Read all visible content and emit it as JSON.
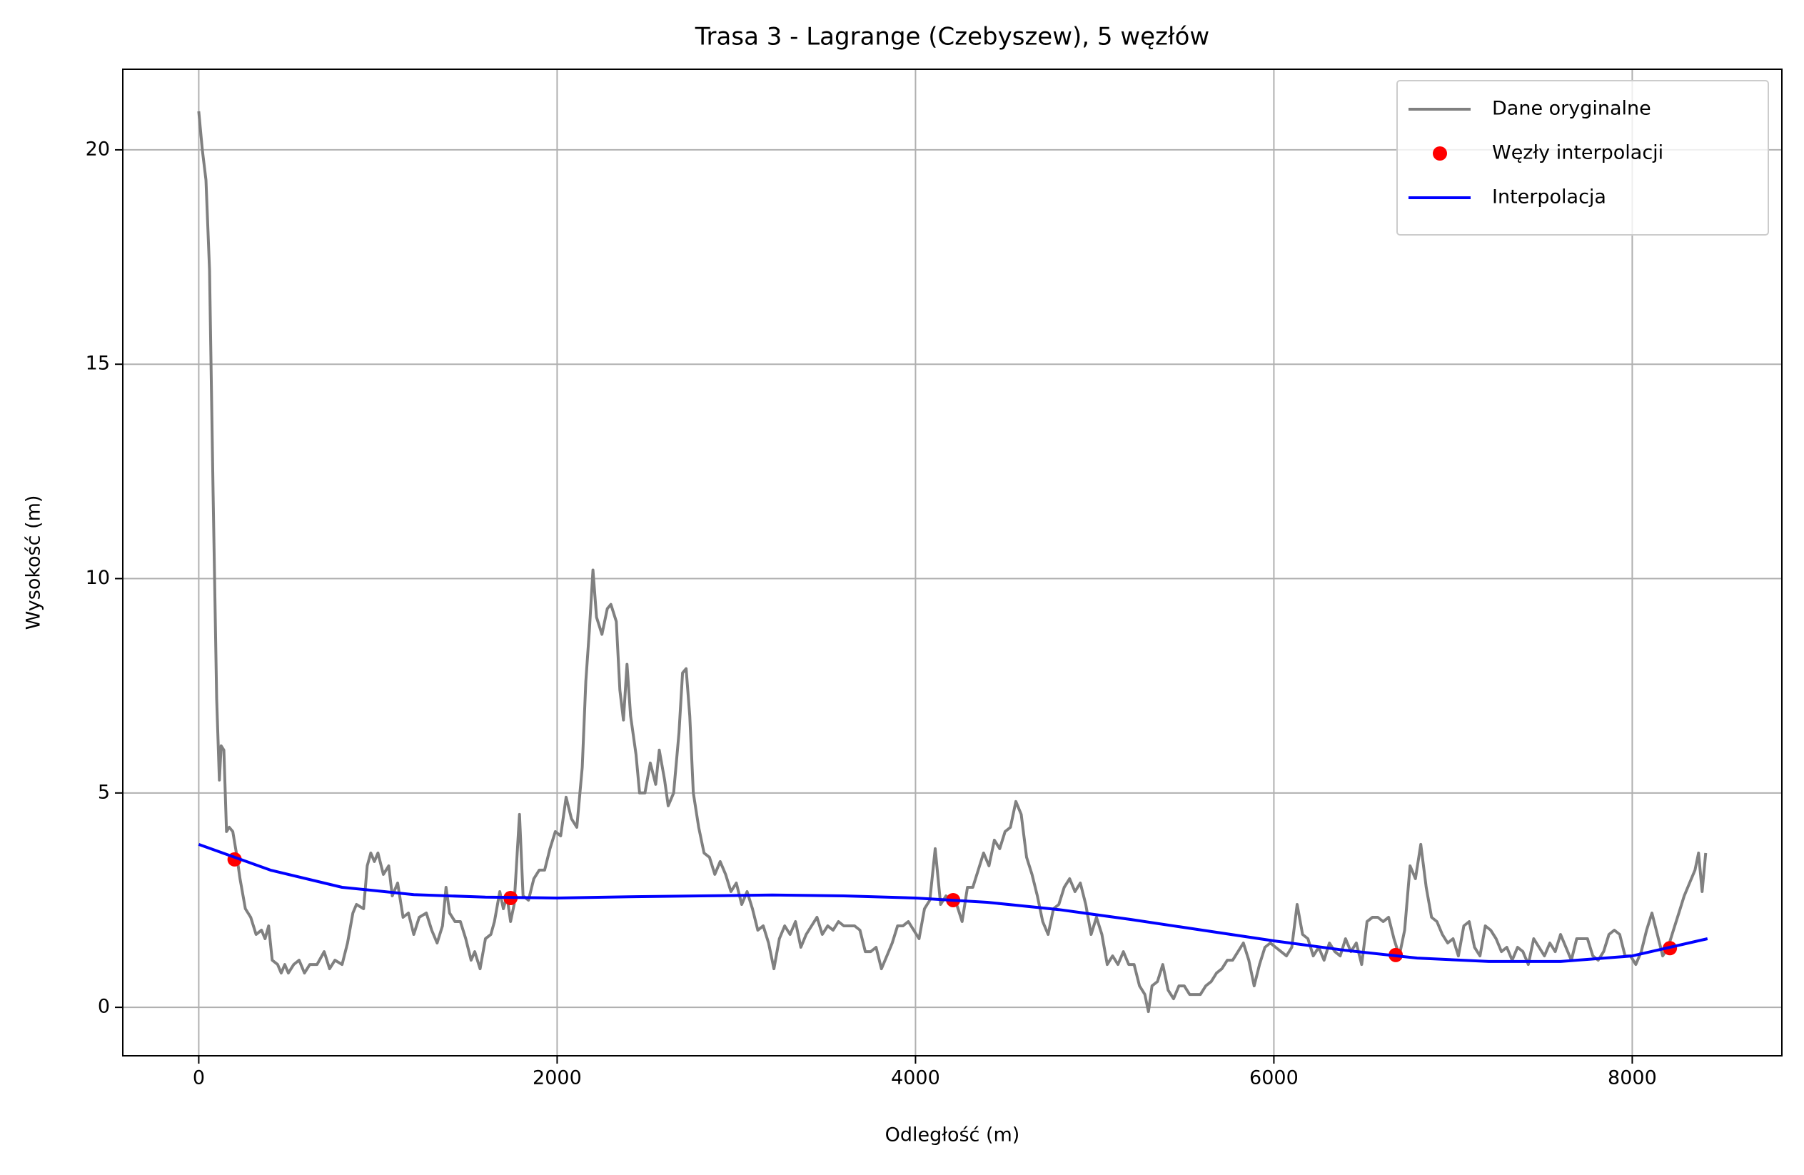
{
  "chart_data": {
    "type": "line",
    "title": "Trasa 3 - Lagrange (Czebyszew), 5 węzłów",
    "x_label": "Odległość (m)",
    "y_label": "Wysokość (m)",
    "xlim": [
      -424,
      8835
    ],
    "ylim": [
      -1.13,
      21.88
    ],
    "xticks": [
      0,
      2000,
      4000,
      6000,
      8000
    ],
    "yticks": [
      0,
      5,
      10,
      15,
      20
    ],
    "grid": true,
    "legend": "upper right",
    "series": [
      {
        "name": "Dane oryginalne",
        "color": "#808080",
        "style": "line",
        "x": [
          0,
          20,
          40,
          60,
          80,
          100,
          115,
          125,
          140,
          155,
          170,
          190,
          210,
          230,
          260,
          290,
          320,
          350,
          370,
          390,
          410,
          440,
          460,
          480,
          500,
          530,
          560,
          590,
          620,
          660,
          700,
          730,
          760,
          800,
          830,
          860,
          880,
          920,
          940,
          960,
          980,
          1000,
          1030,
          1060,
          1080,
          1110,
          1140,
          1170,
          1200,
          1230,
          1270,
          1300,
          1330,
          1360,
          1380,
          1400,
          1430,
          1460,
          1490,
          1520,
          1540,
          1570,
          1600,
          1630,
          1650,
          1680,
          1700,
          1720,
          1740,
          1760,
          1790,
          1810,
          1840,
          1870,
          1900,
          1930,
          1960,
          1990,
          2020,
          2050,
          2080,
          2110,
          2140,
          2160,
          2180,
          2200,
          2220,
          2250,
          2280,
          2300,
          2330,
          2350,
          2370,
          2390,
          2410,
          2440,
          2460,
          2490,
          2520,
          2550,
          2570,
          2600,
          2620,
          2650,
          2680,
          2700,
          2720,
          2740,
          2760,
          2790,
          2820,
          2850,
          2880,
          2910,
          2940,
          2970,
          3000,
          3030,
          3060,
          3090,
          3120,
          3150,
          3180,
          3210,
          3240,
          3270,
          3300,
          3330,
          3360,
          3390,
          3420,
          3450,
          3480,
          3510,
          3540,
          3570,
          3600,
          3630,
          3660,
          3690,
          3720,
          3750,
          3780,
          3810,
          3840,
          3870,
          3900,
          3930,
          3960,
          3990,
          4020,
          4050,
          4080,
          4110,
          4140,
          4170,
          4200,
          4230,
          4260,
          4290,
          4320,
          4350,
          4380,
          4410,
          4440,
          4470,
          4500,
          4530,
          4560,
          4590,
          4620,
          4650,
          4680,
          4710,
          4740,
          4770,
          4800,
          4830,
          4860,
          4890,
          4920,
          4950,
          4980,
          5010,
          5040,
          5070,
          5100,
          5130,
          5160,
          5190,
          5220,
          5250,
          5280,
          5300,
          5320,
          5350,
          5380,
          5410,
          5440,
          5470,
          5500,
          5530,
          5560,
          5590,
          5620,
          5650,
          5680,
          5710,
          5740,
          5770,
          5800,
          5830,
          5860,
          5890,
          5920,
          5950,
          5980,
          6010,
          6040,
          6070,
          6100,
          6130,
          6160,
          6190,
          6220,
          6250,
          6280,
          6310,
          6340,
          6370,
          6400,
          6430,
          6460,
          6490,
          6520,
          6550,
          6580,
          6610,
          6640,
          6670,
          6700,
          6730,
          6760,
          6790,
          6820,
          6850,
          6880,
          6910,
          6940,
          6970,
          7000,
          7030,
          7060,
          7090,
          7120,
          7150,
          7180,
          7210,
          7240,
          7270,
          7300,
          7330,
          7360,
          7390,
          7420,
          7450,
          7480,
          7510,
          7540,
          7570,
          7600,
          7630,
          7660,
          7690,
          7720,
          7750,
          7780,
          7810,
          7840,
          7870,
          7900,
          7930,
          7960,
          7990,
          8020,
          8050,
          8080,
          8110,
          8140,
          8170,
          8200,
          8230,
          8260,
          8290,
          8320,
          8350,
          8370,
          8390,
          8410
        ],
        "values": [
          20.9,
          20,
          19.3,
          17.2,
          12,
          7.2,
          5.3,
          6.1,
          6.0,
          4.1,
          4.2,
          4.1,
          3.6,
          3.0,
          2.3,
          2.1,
          1.7,
          1.8,
          1.6,
          1.9,
          1.1,
          1.0,
          0.8,
          1.0,
          0.8,
          1.0,
          1.1,
          0.8,
          1.0,
          1.0,
          1.3,
          0.9,
          1.1,
          1.0,
          1.5,
          2.2,
          2.4,
          2.3,
          3.3,
          3.6,
          3.4,
          3.6,
          3.1,
          3.3,
          2.6,
          2.9,
          2.1,
          2.2,
          1.7,
          2.1,
          2.2,
          1.8,
          1.5,
          1.9,
          2.8,
          2.2,
          2.0,
          2.0,
          1.6,
          1.1,
          1.3,
          0.9,
          1.6,
          1.7,
          2.0,
          2.7,
          2.3,
          2.6,
          2.0,
          2.4,
          4.5,
          2.6,
          2.5,
          3.0,
          3.2,
          3.2,
          3.7,
          4.1,
          4.0,
          4.9,
          4.4,
          4.2,
          5.6,
          7.6,
          8.8,
          10.2,
          9.1,
          8.7,
          9.3,
          9.4,
          9.0,
          7.4,
          6.7,
          8.0,
          6.8,
          5.9,
          5.0,
          5.0,
          5.7,
          5.2,
          6.0,
          5.3,
          4.7,
          5.0,
          6.4,
          7.8,
          7.9,
          6.8,
          5.0,
          4.2,
          3.6,
          3.5,
          3.1,
          3.4,
          3.1,
          2.7,
          2.9,
          2.4,
          2.7,
          2.3,
          1.8,
          1.9,
          1.5,
          0.9,
          1.6,
          1.9,
          1.7,
          2.0,
          1.4,
          1.7,
          1.9,
          2.1,
          1.7,
          1.9,
          1.8,
          2.0,
          1.9,
          1.9,
          1.9,
          1.8,
          1.3,
          1.3,
          1.4,
          0.9,
          1.2,
          1.5,
          1.9,
          1.9,
          2.0,
          1.8,
          1.6,
          2.3,
          2.5,
          3.7,
          2.4,
          2.6,
          2.5,
          2.4,
          2.0,
          2.8,
          2.8,
          3.2,
          3.6,
          3.3,
          3.9,
          3.7,
          4.1,
          4.2,
          4.8,
          4.5,
          3.5,
          3.1,
          2.6,
          2.0,
          1.7,
          2.3,
          2.4,
          2.8,
          3.0,
          2.7,
          2.9,
          2.4,
          1.7,
          2.1,
          1.7,
          1.0,
          1.2,
          1.0,
          1.3,
          1.0,
          1.0,
          0.5,
          0.3,
          -0.1,
          0.5,
          0.6,
          1.0,
          0.4,
          0.2,
          0.5,
          0.5,
          0.3,
          0.3,
          0.3,
          0.5,
          0.6,
          0.8,
          0.9,
          1.1,
          1.1,
          1.3,
          1.5,
          1.1,
          0.5,
          1.0,
          1.4,
          1.5,
          1.4,
          1.3,
          1.2,
          1.4,
          2.4,
          1.7,
          1.6,
          1.2,
          1.4,
          1.1,
          1.5,
          1.3,
          1.2,
          1.6,
          1.3,
          1.5,
          1.0,
          2.0,
          2.1,
          2.1,
          2.0,
          2.1,
          1.6,
          1.2,
          1.8,
          3.3,
          3.0,
          3.8,
          2.8,
          2.1,
          2.0,
          1.7,
          1.5,
          1.6,
          1.2,
          1.9,
          2.0,
          1.4,
          1.2,
          1.9,
          1.8,
          1.6,
          1.3,
          1.4,
          1.1,
          1.4,
          1.3,
          1.0,
          1.6,
          1.4,
          1.2,
          1.5,
          1.3,
          1.7,
          1.4,
          1.1,
          1.6,
          1.6,
          1.6,
          1.2,
          1.1,
          1.3,
          1.7,
          1.8,
          1.7,
          1.2,
          1.2,
          1.0,
          1.3,
          1.8,
          2.2,
          1.7,
          1.2,
          1.4,
          1.8,
          2.2,
          2.6,
          2.9,
          3.2,
          3.6,
          2.7,
          3.6
        ]
      },
      {
        "name": "Węzły interpolacji",
        "color": "#ff0000",
        "style": "marker",
        "x": [
          200,
          1740,
          4210,
          6680,
          8210
        ],
        "values": [
          3.45,
          2.55,
          2.5,
          1.22,
          1.38
        ]
      },
      {
        "name": "Interpolacja",
        "color": "#0000ff",
        "style": "line",
        "x": [
          0,
          400,
          800,
          1200,
          1600,
          2000,
          2400,
          2800,
          3200,
          3600,
          4000,
          4400,
          4800,
          5200,
          5600,
          6000,
          6400,
          6800,
          7200,
          7600,
          8000,
          8420
        ],
        "values": [
          3.8,
          3.2,
          2.8,
          2.63,
          2.57,
          2.55,
          2.58,
          2.6,
          2.62,
          2.6,
          2.55,
          2.45,
          2.28,
          2.05,
          1.8,
          1.55,
          1.33,
          1.15,
          1.07,
          1.07,
          1.2,
          1.6
        ]
      }
    ]
  }
}
